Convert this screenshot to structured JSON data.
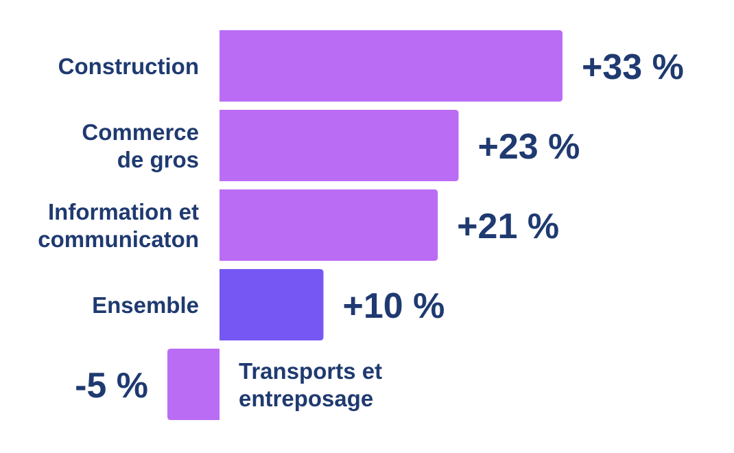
{
  "chart_data": {
    "type": "bar",
    "orientation": "horizontal",
    "title": "",
    "xlabel": "",
    "ylabel": "",
    "categories": [
      [
        "Construction"
      ],
      [
        "Commerce",
        "de gros"
      ],
      [
        "Information et",
        "communicaton"
      ],
      [
        "Ensemble"
      ],
      [
        "Transports et",
        "entreposage"
      ]
    ],
    "values": [
      33,
      23,
      21,
      10,
      -5
    ],
    "value_labels": [
      "+33 %",
      "+23 %",
      "+21 %",
      "+10 %",
      "-5 %"
    ],
    "highlight_index": 3,
    "colors": {
      "bar": "#bb6cf5",
      "highlight": "#7757f3",
      "text": "#1f3a70"
    },
    "xlim": [
      -5,
      33
    ]
  }
}
